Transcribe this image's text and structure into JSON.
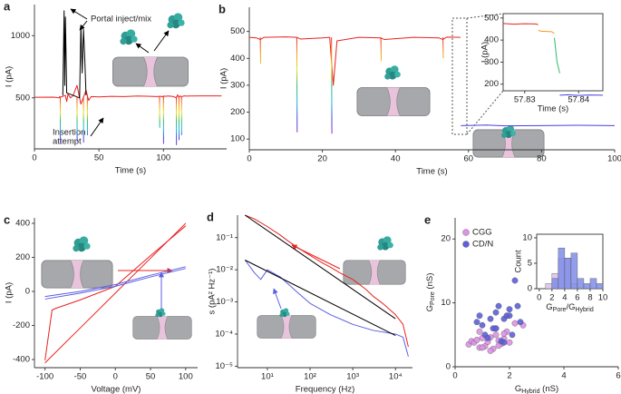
{
  "chart_data": [
    {
      "type": "line",
      "panel": "a",
      "xlabel": "Time (s)",
      "ylabel": "I (pA)",
      "xlim": [
        0,
        149
      ],
      "ylim": [
        90,
        1250
      ],
      "xticks": [
        0,
        50,
        100
      ],
      "yticks": [
        500,
        1000
      ],
      "frame": "axes",
      "annotations": [
        "Portal inject/mix",
        "Insertion",
        "attempt"
      ],
      "series": [
        {
          "color": "#e8231f",
          "x": [
            0,
            15,
            19,
            19.5,
            20,
            24,
            25,
            26,
            28,
            30,
            33,
            36,
            40,
            42,
            44,
            50,
            60,
            70,
            80,
            90,
            95,
            98,
            99,
            100,
            101,
            104,
            108,
            110,
            111,
            112,
            113,
            114,
            115,
            116,
            118,
            120,
            130,
            145
          ],
          "values": [
            505,
            506,
            500,
            510,
            505,
            520,
            470,
            530,
            500,
            520,
            600,
            450,
            560,
            480,
            510,
            508,
            512,
            510,
            515,
            512,
            510,
            513,
            508,
            515,
            512,
            515,
            510,
            500,
            525,
            505,
            515,
            510,
            512,
            516,
            514,
            515,
            516,
            516
          ]
        },
        {
          "color": "#000000",
          "x": [
            22,
            23,
            23.5,
            24,
            25,
            35,
            36,
            37,
            38,
            39,
            40
          ],
          "values": [
            520,
            1200,
            600,
            1150,
            540,
            500,
            1080,
            700,
            1050,
            820,
            520
          ]
        },
        {
          "gradient": true,
          "x": [
            20,
            20.1,
            null,
            33,
            33.1,
            null,
            38,
            38.1,
            null,
            41,
            41.1,
            null,
            97,
            97.1,
            null,
            100,
            100.1,
            null,
            110,
            110.1,
            null,
            112,
            112.1,
            null,
            114,
            114.1
          ],
          "values": [
            510,
            130,
            null,
            510,
            150,
            null,
            510,
            140,
            null,
            510,
            200,
            null,
            510,
            260,
            null,
            510,
            130,
            null,
            510,
            120,
            null,
            510,
            160,
            null,
            510,
            200
          ]
        }
      ]
    },
    {
      "type": "line",
      "panel": "b",
      "xlabel": "Time (s)",
      "ylabel": "I (pA)",
      "xlim": [
        0,
        100
      ],
      "ylim": [
        60,
        590
      ],
      "xticks": [
        0,
        20,
        40,
        60,
        80,
        100
      ],
      "yticks": [
        100,
        200,
        300,
        400,
        500
      ],
      "frame": "axes",
      "series": [
        {
          "color": "#e8231f",
          "x": [
            0,
            2,
            3,
            4,
            10,
            13,
            14,
            20,
            22,
            23,
            24,
            30,
            36,
            37,
            45,
            52,
            53,
            54,
            57.8
          ],
          "values": [
            478,
            476,
            470,
            478,
            480,
            478,
            472,
            476,
            478,
            300,
            465,
            478,
            476,
            470,
            478,
            476,
            470,
            479,
            478
          ]
        },
        {
          "color": "#4a3fe0",
          "x": [
            57.9,
            65,
            70,
            80,
            90,
            100
          ],
          "values": [
            150,
            152,
            149,
            150,
            151,
            150
          ]
        },
        {
          "gradient": true,
          "x": [
            3,
            3.1,
            null,
            13,
            13.1,
            null,
            22.5,
            22.6,
            null,
            36,
            36.1,
            null,
            53,
            53.1
          ],
          "values": [
            478,
            380,
            null,
            478,
            125,
            null,
            478,
            120,
            null,
            478,
            390,
            null,
            478,
            400
          ]
        }
      ]
    },
    {
      "type": "line",
      "xlabel": "Time (s)",
      "ylabel": "I (pA)",
      "xlim": [
        57.826,
        57.8445
      ],
      "ylim": [
        170,
        520
      ],
      "xticks": [
        57.83,
        57.84
      ],
      "yticks": [
        200,
        300,
        400,
        500
      ],
      "frame": "box",
      "series": [
        {
          "color": "#e8231f",
          "x": [
            57.826,
            57.828,
            57.83,
            57.832,
            57.8325
          ],
          "values": [
            475,
            472,
            474,
            473,
            470
          ]
        },
        {
          "color": "#f39a1e",
          "x": [
            57.8325,
            57.833,
            57.835,
            57.8355
          ],
          "values": [
            445,
            440,
            438,
            430
          ]
        },
        {
          "color": "#2fb86a",
          "x": [
            57.8355,
            57.836,
            57.8365
          ],
          "values": [
            410,
            300,
            250
          ]
        },
        {
          "color": "#4a3fe0",
          "x": [
            57.8365,
            57.838,
            57.84,
            57.842,
            57.8445
          ],
          "values": [
            150,
            152,
            149,
            151,
            150
          ]
        }
      ]
    },
    {
      "type": "line",
      "panel": "c",
      "xlabel": "Voltage (mV)",
      "ylabel": "I (pA)",
      "xlim": [
        -115,
        117
      ],
      "ylim": [
        -448,
        432
      ],
      "xticks": [
        -100,
        -50,
        0,
        50,
        100
      ],
      "yticks": [
        -400,
        -200,
        0,
        200,
        400
      ],
      "frame": "axes",
      "series": [
        {
          "color": "#e8231f",
          "x": [
            -100,
            -50,
            0,
            50,
            100
          ],
          "values": [
            -420,
            -215,
            -10,
            195,
            400
          ]
        },
        {
          "color": "#e8231f",
          "x": [
            -100,
            -90,
            -85,
            -50,
            0,
            50,
            100
          ],
          "values": [
            -405,
            -110,
            -100,
            -50,
            30,
            210,
            385
          ]
        },
        {
          "color": "#5a5ee0",
          "x": [
            -100,
            -50,
            0,
            50,
            100
          ],
          "values": [
            -30,
            0,
            40,
            95,
            145
          ]
        },
        {
          "color": "#5a5ee0",
          "x": [
            -100,
            -50,
            0,
            50,
            100
          ],
          "values": [
            -45,
            -10,
            30,
            85,
            135
          ]
        }
      ]
    },
    {
      "type": "line",
      "panel": "d",
      "xlabel": "Frequency (Hz)",
      "ylabel": "s (pA² Hz⁻¹)",
      "xlog": true,
      "ylog": true,
      "xlim": [
        2,
        25000
      ],
      "ylim": [
        9e-06,
        0.5
      ],
      "frame": "axes",
      "xticks": [
        {
          "value": 10,
          "label": "10¹"
        },
        {
          "value": 100,
          "label": "10²"
        },
        {
          "value": 1000,
          "label": "10³"
        },
        {
          "value": 10000,
          "label": "10⁴"
        }
      ],
      "yticks": [
        {
          "value": 1e-05,
          "label": "10⁻⁵"
        },
        {
          "value": 0.0001,
          "label": "10⁻⁴"
        },
        {
          "value": 0.001,
          "label": "10⁻³"
        },
        {
          "value": 0.01,
          "label": "10⁻²"
        },
        {
          "value": 0.1,
          "label": "10⁻¹"
        }
      ],
      "series": [
        {
          "color": "#e8231f",
          "x": [
            3,
            5,
            10,
            20,
            30,
            50,
            100,
            200,
            300,
            500,
            1000,
            2000,
            3000,
            5000,
            10000,
            15000,
            20000
          ],
          "values": [
            0.5,
            0.38,
            0.22,
            0.12,
            0.08,
            0.05,
            0.028,
            0.016,
            0.012,
            0.008,
            0.005,
            0.0025,
            0.0015,
            0.0009,
            0.0004,
            0.0002,
            4e-05
          ]
        },
        {
          "color": "#000000",
          "x": [
            3,
            10000
          ],
          "values": [
            0.5,
            0.0003
          ]
        },
        {
          "color": "#5a5ee0",
          "x": [
            3,
            5,
            7,
            10,
            20,
            50,
            100,
            300,
            1000,
            3000,
            10000,
            15000,
            20000
          ],
          "values": [
            0.02,
            0.008,
            0.005,
            0.01,
            0.006,
            0.002,
            0.0009,
            0.0004,
            0.0002,
            0.00013,
            0.0001,
            8e-05,
            2e-05
          ]
        },
        {
          "color": "#000000",
          "x": [
            3,
            10000
          ],
          "values": [
            0.02,
            9e-05
          ]
        }
      ]
    },
    {
      "type": "scatter",
      "panel": "e",
      "xlim": [
        0,
        6
      ],
      "ylim": [
        0,
        23.3
      ],
      "xticks": [
        0,
        2,
        4,
        6
      ],
      "yticks": [
        0,
        10,
        20
      ],
      "frame": "axes",
      "legend": "upper left",
      "xlabel": [
        {
          "text": "G"
        },
        {
          "sub": "Hybrid"
        },
        {
          "text": " (nS)"
        }
      ],
      "ylabel": [
        {
          "text": "G"
        },
        {
          "sub": "Pore"
        },
        {
          "text": " (nS)"
        }
      ],
      "series": [
        {
          "name": "CGG",
          "color": "#dd92e6",
          "x": [
            0.5,
            0.6,
            0.7,
            0.8,
            0.9,
            1.0,
            1.1,
            1.2,
            1.3,
            1.4,
            1.5,
            1.6,
            1.7,
            1.8,
            1.9,
            2.0,
            2.2,
            2.5,
            1.0,
            1.3,
            1.5,
            1.8,
            0.9,
            1.6
          ],
          "values": [
            3.5,
            4,
            3.8,
            4.2,
            3,
            4.5,
            3.2,
            3.9,
            4.6,
            2.8,
            5,
            4.1,
            3.6,
            4.4,
            5.5,
            3.8,
            6.8,
            6.5,
            3,
            2.5,
            6,
            5.2,
            5.5,
            3.3
          ]
        },
        {
          "name": "CD/N",
          "color": "#5d5fdc",
          "x": [
            0.8,
            0.9,
            1.0,
            1.1,
            1.2,
            1.3,
            1.4,
            1.5,
            1.6,
            1.7,
            1.8,
            1.9,
            2.0,
            2.1,
            2.2,
            2.3,
            2.4,
            1.5,
            1.8,
            2.0
          ],
          "values": [
            7,
            8,
            6.5,
            5,
            4.5,
            7.5,
            6,
            8.5,
            9.5,
            4,
            7.5,
            8,
            9,
            5,
            13.5,
            9.5,
            7,
            6,
            3.8,
            8
          ]
        }
      ]
    },
    {
      "type": "histogram",
      "xlim": [
        -0.4,
        10
      ],
      "ylim": [
        0,
        10.7
      ],
      "xticks": [
        0,
        2,
        4,
        6,
        8,
        10
      ],
      "yticks": [
        0,
        5,
        10
      ],
      "frame": "box",
      "xlabel": [
        {
          "text": "G"
        },
        {
          "sub": "Pore"
        },
        {
          "text": "/G"
        },
        {
          "sub": "Hybrid"
        }
      ],
      "ylabel": "Count",
      "bins": [
        1,
        2,
        3,
        4,
        5,
        6,
        7,
        8,
        9,
        10
      ],
      "series": [
        {
          "color": "#dcc0f0",
          "counts": [
            1,
            3,
            6,
            6,
            1,
            0,
            0,
            0,
            0
          ]
        },
        {
          "color": "#7f8de8",
          "counts": [
            0,
            2,
            8,
            6,
            7,
            2,
            1,
            2,
            1
          ]
        }
      ]
    }
  ]
}
